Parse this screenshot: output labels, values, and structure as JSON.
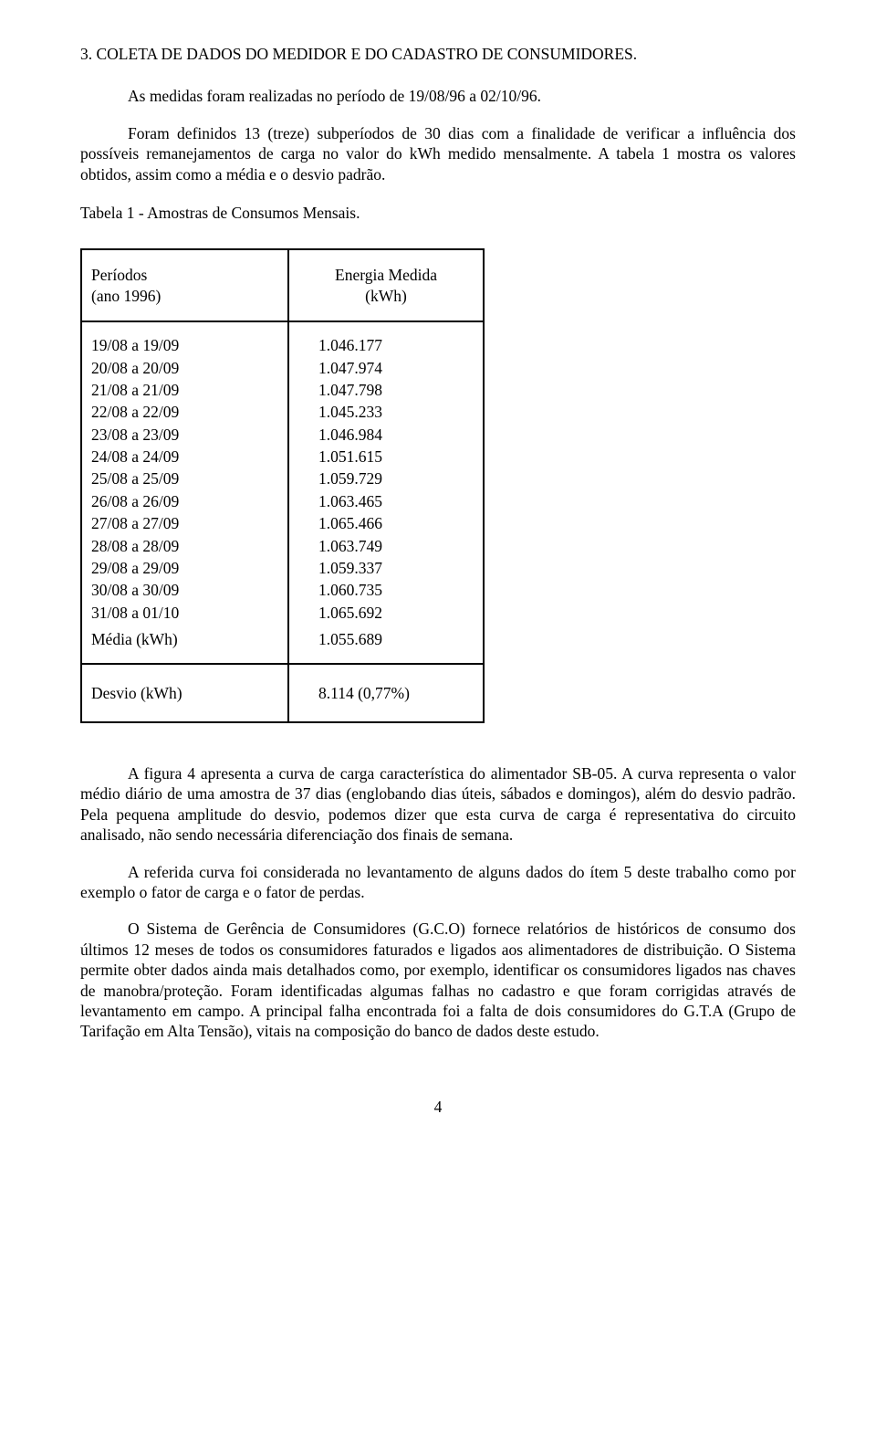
{
  "section_title": "3. COLETA  DE DADOS  DO MEDIDOR E DO CADASTRO DE CONSUMIDORES.",
  "paragraphs": {
    "p1": "As medidas foram realizadas no período de 19/08/96 a 02/10/96.",
    "p2": "Foram definidos 13 (treze) subperíodos de 30 dias com a finalidade de verificar a influência dos possíveis remanejamentos de carga no valor do kWh medido mensalmente. A tabela 1 mostra os valores obtidos, assim como a média e o desvio padrão.",
    "table_caption": "Tabela 1 - Amostras de Consumos Mensais.",
    "p3": "A figura 4 apresenta a curva de carga característica do alimentador SB-05. A curva representa o valor médio diário de uma amostra de 37 dias (englobando dias úteis, sábados e domingos),  além do desvio padrão. Pela pequena amplitude do desvio, podemos dizer que esta curva de carga é representativa do circuito analisado, não sendo necessária diferenciação dos finais de semana.",
    "p4": "A referida curva foi considerada no levantamento de alguns dados do ítem 5 deste trabalho como por exemplo o fator de carga e o fator de perdas.",
    "p5": "O Sistema de Gerência de Consumidores (G.C.O) fornece relatórios de históricos de consumo dos últimos 12 meses de todos os consumidores faturados e ligados aos alimentadores de distribuição. O Sistema permite obter dados ainda  mais detalhados como, por exemplo, identificar os consumidores ligados nas chaves de manobra/proteção. Foram identificadas algumas  falhas no cadastro e que foram corrigidas através de levantamento em campo. A principal falha encontrada foi a falta de dois consumidores do G.T.A (Grupo de Tarifação em Alta Tensão), vitais na composição do banco de dados deste estudo."
  },
  "table": {
    "header1_line1": "Períodos",
    "header1_line2": "(ano 1996)",
    "header2_line1": "Energia Medida",
    "header2_line2": "(kWh)",
    "rows": [
      {
        "period": "19/08  a  19/09",
        "value": "1.046.177"
      },
      {
        "period": "20/08  a  20/09",
        "value": "1.047.974"
      },
      {
        "period": "21/08  a  21/09",
        "value": "1.047.798"
      },
      {
        "period": "22/08  a  22/09",
        "value": "1.045.233"
      },
      {
        "period": "23/08  a  23/09",
        "value": "1.046.984"
      },
      {
        "period": "24/08  a  24/09",
        "value": "1.051.615"
      },
      {
        "period": "25/08  a  25/09",
        "value": "1.059.729"
      },
      {
        "period": "26/08  a  26/09",
        "value": "1.063.465"
      },
      {
        "period": "27/08  a  27/09",
        "value": "1.065.466"
      },
      {
        "period": "28/08  a  28/09",
        "value": "1.063.749"
      },
      {
        "period": "29/08  a  29/09",
        "value": "1.059.337"
      },
      {
        "period": "30/08  a  30/09",
        "value": "1.060.735"
      },
      {
        "period": "31/08  a  01/10",
        "value": "1.065.692"
      }
    ],
    "mean_label": "Média (kWh)",
    "mean_value": "1.055.689",
    "dev_label": "Desvio (kWh)",
    "dev_value": "8.114 (0,77%)"
  },
  "page_number": "4",
  "colors": {
    "text": "#000000",
    "background": "#ffffff",
    "border": "#000000"
  },
  "typography": {
    "font_family": "Times New Roman",
    "body_fontsize_pt": 13,
    "line_height": 1.28
  }
}
